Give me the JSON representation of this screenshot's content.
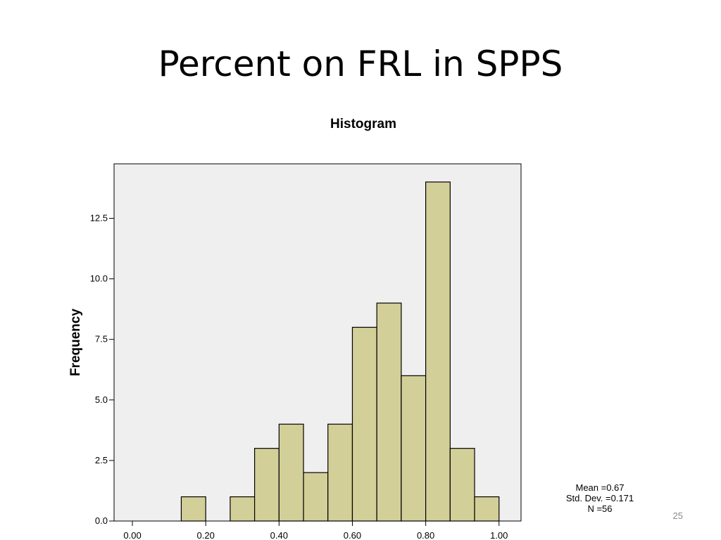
{
  "slide": {
    "title": "Percent on FRL in SPPS",
    "page_number": "25"
  },
  "stats": {
    "mean": "Mean =0.67",
    "std_dev": "Std. Dev. =0.171",
    "n": "N =56"
  },
  "chart_data": {
    "type": "bar",
    "title": "Histogram",
    "xlabel": "",
    "ylabel": "Frequency",
    "xlim": [
      -0.05,
      1.06
    ],
    "ylim": [
      0,
      14.75
    ],
    "bin_width": 0.0667,
    "bins": [
      {
        "start": 0.1333,
        "end": 0.2,
        "value": 1
      },
      {
        "start": 0.2667,
        "end": 0.3333,
        "value": 1
      },
      {
        "start": 0.3333,
        "end": 0.4,
        "value": 3
      },
      {
        "start": 0.4,
        "end": 0.4667,
        "value": 4
      },
      {
        "start": 0.4667,
        "end": 0.5333,
        "value": 2
      },
      {
        "start": 0.5333,
        "end": 0.6,
        "value": 4
      },
      {
        "start": 0.6,
        "end": 0.6667,
        "value": 8
      },
      {
        "start": 0.6667,
        "end": 0.7333,
        "value": 9
      },
      {
        "start": 0.7333,
        "end": 0.8,
        "value": 6
      },
      {
        "start": 0.8,
        "end": 0.8667,
        "value": 14
      },
      {
        "start": 0.8667,
        "end": 0.9333,
        "value": 3
      },
      {
        "start": 0.9333,
        "end": 1.0,
        "value": 1
      }
    ],
    "x_ticks": [
      {
        "value": 0.0,
        "label": "0.00"
      },
      {
        "value": 0.2,
        "label": "0.20"
      },
      {
        "value": 0.4,
        "label": "0.40"
      },
      {
        "value": 0.6,
        "label": "0.60"
      },
      {
        "value": 0.8,
        "label": "0.80"
      },
      {
        "value": 1.0,
        "label": "1.00"
      }
    ],
    "y_ticks": [
      {
        "value": 0.0,
        "label": "0.0"
      },
      {
        "value": 2.5,
        "label": "2.5"
      },
      {
        "value": 5.0,
        "label": "5.0"
      },
      {
        "value": 7.5,
        "label": "7.5"
      },
      {
        "value": 10.0,
        "label": "10.0"
      },
      {
        "value": 12.5,
        "label": "12.5"
      }
    ],
    "grid": false,
    "colors": {
      "plot_background": "#efefef",
      "bar_fill": "#d3cf98",
      "bar_stroke": "#000000"
    }
  }
}
